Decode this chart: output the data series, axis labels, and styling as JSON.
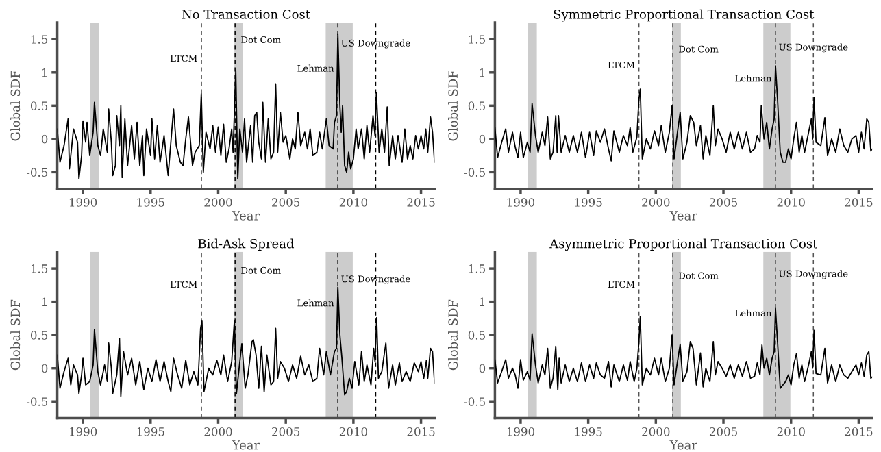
{
  "chart_data": [
    {
      "type": "line",
      "title": "No Transaction Cost",
      "xlabel": "Year",
      "ylabel": "Global SDF",
      "xlim": [
        1988.1,
        2016.0
      ],
      "ylim": [
        -0.75,
        1.75
      ],
      "xticks": [
        1990,
        1995,
        2000,
        2005,
        2010,
        2015
      ],
      "yticks": [
        -0.5,
        0,
        0.5,
        1,
        1.5
      ],
      "grid": false,
      "legend": false,
      "x": [
        1988.1,
        1988.3,
        1988.6,
        1988.9,
        1989.0,
        1989.3,
        1989.6,
        1989.7,
        1989.9,
        1990.0,
        1990.2,
        1990.3,
        1990.5,
        1990.75,
        1990.85,
        1991.1,
        1991.3,
        1991.5,
        1991.8,
        1991.9,
        1992.1,
        1992.2,
        1992.4,
        1992.5,
        1992.7,
        1992.8,
        1992.9,
        1993.1,
        1993.3,
        1993.6,
        1993.8,
        1994.0,
        1994.2,
        1994.4,
        1994.5,
        1994.7,
        1995.0,
        1995.1,
        1995.3,
        1995.5,
        1995.7,
        1996.0,
        1996.3,
        1996.5,
        1996.7,
        1996.9,
        1997.2,
        1997.4,
        1997.6,
        1997.8,
        1998.1,
        1998.3,
        1998.6,
        1998.75,
        1998.9,
        1999.1,
        1999.4,
        1999.6,
        1999.8,
        2000.0,
        2000.2,
        2000.4,
        2000.6,
        2000.8,
        2001.0,
        2001.1,
        2001.3,
        2001.45,
        2001.6,
        2001.8,
        2001.95,
        2002.1,
        2002.4,
        2002.55,
        2002.7,
        2002.85,
        2003.0,
        2003.2,
        2003.3,
        2003.5,
        2003.7,
        2003.9,
        2004.1,
        2004.25,
        2004.4,
        2004.6,
        2004.8,
        2005.0,
        2005.3,
        2005.5,
        2005.7,
        2005.9,
        2006.1,
        2006.4,
        2006.6,
        2006.8,
        2007.0,
        2007.3,
        2007.5,
        2007.7,
        2008.0,
        2008.2,
        2008.5,
        2008.6,
        2008.75,
        2008.85,
        2009.0,
        2009.1,
        2009.2,
        2009.35,
        2009.5,
        2009.65,
        2009.8,
        2010.0,
        2010.2,
        2010.35,
        2010.6,
        2010.8,
        2011.0,
        2011.2,
        2011.45,
        2011.6,
        2011.7,
        2011.9,
        2012.1,
        2012.3,
        2012.5,
        2012.65,
        2012.9,
        2013.1,
        2013.3,
        2013.6,
        2013.8,
        2014.0,
        2014.2,
        2014.4,
        2014.6,
        2014.8,
        2015.0,
        2015.2,
        2015.35,
        2015.5,
        2015.7,
        2015.85,
        2016.0
      ],
      "series": [
        {
          "color": "#000000",
          "values": [
            0.15,
            -0.35,
            -0.1,
            0.3,
            -0.45,
            0.15,
            -0.05,
            -0.6,
            -0.25,
            0.27,
            -0.05,
            0.25,
            -0.25,
            0.1,
            0.55,
            -0.1,
            -0.25,
            0.15,
            -0.2,
            0.45,
            -0.05,
            -0.55,
            -0.4,
            0.35,
            -0.1,
            0.5,
            -0.58,
            0.3,
            -0.4,
            0.2,
            -0.3,
            0.25,
            -0.4,
            0.05,
            -0.55,
            0.15,
            -0.25,
            0.3,
            -0.3,
            0.2,
            -0.35,
            0.05,
            -0.55,
            -0.05,
            0.45,
            -0.1,
            -0.35,
            -0.4,
            0.0,
            0.33,
            -0.4,
            -0.2,
            -0.1,
            0.68,
            -0.5,
            0.1,
            -0.15,
            0.2,
            -0.2,
            0.18,
            -0.25,
            0.22,
            -0.35,
            -0.15,
            0.15,
            -0.2,
            1.03,
            -0.6,
            0.15,
            -0.2,
            0.3,
            -0.35,
            0.2,
            -0.35,
            0.35,
            0.4,
            -0.05,
            -0.3,
            0.55,
            -0.35,
            0.3,
            -0.3,
            -0.2,
            0.83,
            -0.2,
            0.4,
            -0.05,
            0.05,
            -0.3,
            0.0,
            -0.15,
            0.4,
            -0.1,
            0.1,
            -0.15,
            0.15,
            -0.25,
            -0.2,
            0.1,
            -0.15,
            0.3,
            -0.1,
            -0.15,
            0.25,
            0.35,
            1.58,
            0.5,
            0.1,
            0.5,
            -0.4,
            -0.5,
            -0.2,
            -0.45,
            -0.3,
            0.15,
            -0.15,
            0.15,
            -0.3,
            0.2,
            -0.2,
            0.35,
            0.05,
            0.7,
            -0.2,
            0.15,
            -0.2,
            0.48,
            -0.4,
            0.05,
            -0.3,
            0.05,
            -0.35,
            0.15,
            -0.3,
            -0.1,
            -0.3,
            0.05,
            -0.15,
            0.05,
            -0.15,
            0.15,
            -0.2,
            0.33,
            0.1,
            -0.35
          ]
        }
      ],
      "bands": [
        {
          "axis": "x",
          "from": 1990.55,
          "to": 1991.2,
          "color": "#cccccc"
        },
        {
          "axis": "x",
          "from": 2001.2,
          "to": 2001.85,
          "color": "#cccccc"
        },
        {
          "axis": "x",
          "from": 2007.95,
          "to": 2009.95,
          "color": "#cccccc"
        }
      ],
      "ref_lines": [
        {
          "axis": "x",
          "value": 1998.75,
          "color": "#000000",
          "line_style": "dashed"
        },
        {
          "axis": "x",
          "value": 2001.25,
          "color": "#000000",
          "line_style": "dashed"
        },
        {
          "axis": "x",
          "value": 2008.85,
          "color": "#000000",
          "line_style": "dashed"
        },
        {
          "axis": "x",
          "value": 2011.65,
          "color": "#000000",
          "line_style": "dashed"
        }
      ],
      "annotations": [
        {
          "text": "LTCM",
          "x": 1998.75,
          "y": 1.2
        },
        {
          "text": "Dot Com",
          "x": 2001.25,
          "y": 1.48
        },
        {
          "text": "Lehman",
          "x": 2008.85,
          "y": 1.05
        },
        {
          "text": "US Downgrade",
          "x": 2011.65,
          "y": 1.43
        }
      ]
    },
    {
      "type": "line",
      "title": "Symmetric Proportional Transaction Cost",
      "xlabel": "Year",
      "ylabel": "Global SDF",
      "xlim": [
        1988.1,
        2016.0
      ],
      "ylim": [
        -0.75,
        1.75
      ],
      "xticks": [
        1990,
        1995,
        2000,
        2005,
        2010,
        2015
      ],
      "yticks": [
        -0.5,
        0,
        0.5,
        1,
        1.5
      ],
      "grid": false,
      "legend": false,
      "x": [
        1988.1,
        1988.3,
        1988.6,
        1988.9,
        1989.1,
        1989.4,
        1989.6,
        1989.8,
        1990.0,
        1990.2,
        1990.5,
        1990.7,
        1990.85,
        1991.1,
        1991.3,
        1991.6,
        1991.8,
        1992.0,
        1992.2,
        1992.4,
        1992.6,
        1992.7,
        1992.8,
        1993.0,
        1993.3,
        1993.6,
        1993.9,
        1994.2,
        1994.5,
        1994.8,
        1995.1,
        1995.4,
        1995.6,
        1995.9,
        1996.2,
        1996.5,
        1996.7,
        1996.9,
        1997.3,
        1997.6,
        1997.9,
        1998.1,
        1998.3,
        1998.6,
        1998.75,
        1998.85,
        1999.0,
        1999.3,
        1999.6,
        1999.9,
        2000.2,
        2000.4,
        2000.7,
        2001.0,
        2001.2,
        2001.35,
        2001.6,
        2001.8,
        2002.0,
        2002.3,
        2002.55,
        2002.8,
        2003.0,
        2003.3,
        2003.5,
        2003.7,
        2004.0,
        2004.25,
        2004.4,
        2004.6,
        2004.9,
        2005.2,
        2005.5,
        2005.8,
        2006.1,
        2006.4,
        2006.7,
        2007.0,
        2007.3,
        2007.5,
        2007.7,
        2007.8,
        2008.0,
        2008.2,
        2008.4,
        2008.6,
        2008.75,
        2008.85,
        2009.0,
        2009.2,
        2009.4,
        2009.6,
        2009.8,
        2010.0,
        2010.2,
        2010.4,
        2010.6,
        2010.8,
        2011.0,
        2011.3,
        2011.5,
        2011.6,
        2011.7,
        2011.85,
        2012.2,
        2012.5,
        2012.7,
        2013.0,
        2013.3,
        2013.6,
        2013.9,
        2014.2,
        2014.5,
        2014.8,
        2015.0,
        2015.2,
        2015.4,
        2015.6,
        2015.75,
        2015.9,
        2016.0
      ],
      "series": [
        {
          "color": "#000000",
          "values": [
            0.17,
            -0.28,
            -0.05,
            0.15,
            -0.2,
            0.1,
            -0.12,
            -0.28,
            0.1,
            -0.28,
            -0.05,
            -0.2,
            0.53,
            0.05,
            -0.2,
            0.1,
            -0.1,
            0.33,
            -0.3,
            -0.2,
            0.35,
            -0.2,
            0.35,
            -0.2,
            0.05,
            -0.2,
            0.05,
            -0.2,
            0.1,
            -0.28,
            0.1,
            -0.25,
            0.12,
            -0.05,
            0.15,
            -0.15,
            -0.33,
            0.12,
            -0.2,
            0.05,
            -0.1,
            0.17,
            -0.2,
            0.03,
            0.6,
            0.75,
            -0.3,
            0.0,
            -0.15,
            0.12,
            -0.1,
            0.2,
            -0.2,
            0.1,
            0.5,
            -0.3,
            0.1,
            0.4,
            -0.3,
            -0.05,
            0.35,
            0.25,
            -0.1,
            0.2,
            -0.3,
            0.05,
            -0.25,
            0.5,
            -0.1,
            0.15,
            0.0,
            -0.2,
            0.1,
            -0.15,
            0.1,
            -0.15,
            0.1,
            -0.2,
            -0.15,
            0.05,
            -0.05,
            0.5,
            0.0,
            0.25,
            -0.15,
            0.15,
            0.3,
            1.1,
            0.6,
            -0.2,
            -0.35,
            -0.35,
            -0.15,
            -0.3,
            0.0,
            0.25,
            -0.2,
            0.05,
            -0.2,
            0.1,
            0.3,
            0.0,
            0.62,
            -0.05,
            -0.1,
            0.32,
            -0.25,
            0.0,
            -0.2,
            0.15,
            -0.1,
            -0.2,
            0.0,
            0.05,
            -0.2,
            0.1,
            -0.15,
            0.3,
            0.25,
            -0.18,
            -0.15
          ]
        }
      ],
      "bands": [
        {
          "axis": "x",
          "from": 1990.55,
          "to": 1991.2,
          "color": "#cccccc"
        },
        {
          "axis": "x",
          "from": 2001.2,
          "to": 2001.85,
          "color": "#cccccc"
        },
        {
          "axis": "x",
          "from": 2007.95,
          "to": 2009.95,
          "color": "#cccccc"
        }
      ],
      "ref_lines": [
        {
          "axis": "x",
          "value": 1998.75,
          "color": "#555555",
          "line_style": "dashed"
        },
        {
          "axis": "x",
          "value": 2001.25,
          "color": "#555555",
          "line_style": "dashed"
        },
        {
          "axis": "x",
          "value": 2008.85,
          "color": "#555555",
          "line_style": "dashed"
        },
        {
          "axis": "x",
          "value": 2011.65,
          "color": "#555555",
          "line_style": "dashed"
        }
      ],
      "annotations": [
        {
          "text": "LTCM",
          "x": 1998.75,
          "y": 1.1
        },
        {
          "text": "Dot Com",
          "x": 2001.25,
          "y": 1.34
        },
        {
          "text": "Lehman",
          "x": 2008.85,
          "y": 0.9
        },
        {
          "text": "US Downgrade",
          "x": 2011.65,
          "y": 1.37
        }
      ]
    },
    {
      "type": "line",
      "title": "Bid-Ask Spread",
      "xlabel": "Year",
      "ylabel": "Global SDF",
      "xlim": [
        1988.1,
        2016.0
      ],
      "ylim": [
        -0.75,
        1.75
      ],
      "xticks": [
        1990,
        1995,
        2000,
        2005,
        2010,
        2015
      ],
      "yticks": [
        -0.5,
        0,
        0.5,
        1,
        1.5
      ],
      "grid": false,
      "legend": false,
      "x": [
        1988.1,
        1988.3,
        1988.6,
        1988.9,
        1989.1,
        1989.3,
        1989.6,
        1989.7,
        1989.9,
        1990.0,
        1990.2,
        1990.5,
        1990.75,
        1990.85,
        1991.1,
        1991.3,
        1991.6,
        1991.8,
        1991.9,
        1992.1,
        1992.2,
        1992.5,
        1992.7,
        1992.8,
        1993.0,
        1993.3,
        1993.6,
        1993.9,
        1994.2,
        1994.5,
        1994.8,
        1995.1,
        1995.4,
        1995.7,
        1996.0,
        1996.3,
        1996.5,
        1996.7,
        1997.0,
        1997.3,
        1997.6,
        1997.9,
        1998.2,
        1998.5,
        1998.7,
        1998.8,
        1998.95,
        1999.3,
        1999.6,
        1999.9,
        2000.2,
        2000.4,
        2000.7,
        2001.0,
        2001.2,
        2001.35,
        2001.6,
        2001.75,
        2002.0,
        2002.2,
        2002.5,
        2002.6,
        2002.8,
        2003.0,
        2003.2,
        2003.4,
        2003.6,
        2003.9,
        2004.1,
        2004.25,
        2004.4,
        2004.6,
        2004.9,
        2005.2,
        2005.5,
        2005.8,
        2006.1,
        2006.4,
        2006.7,
        2007.0,
        2007.3,
        2007.5,
        2007.8,
        2008.0,
        2008.3,
        2008.6,
        2008.75,
        2008.85,
        2009.0,
        2009.15,
        2009.35,
        2009.5,
        2009.7,
        2009.9,
        2010.1,
        2010.4,
        2010.6,
        2010.8,
        2011.0,
        2011.3,
        2011.5,
        2011.6,
        2011.72,
        2011.85,
        2012.1,
        2012.4,
        2012.6,
        2012.9,
        2013.1,
        2013.4,
        2013.6,
        2013.9,
        2014.2,
        2014.5,
        2014.8,
        2015.0,
        2015.2,
        2015.4,
        2015.5,
        2015.7,
        2015.85,
        2016.0
      ],
      "series": [
        {
          "color": "#000000",
          "values": [
            0.2,
            -0.3,
            -0.05,
            0.15,
            -0.25,
            0.05,
            -0.1,
            -0.38,
            -0.1,
            0.15,
            -0.25,
            -0.2,
            0.05,
            0.58,
            -0.05,
            -0.25,
            0.05,
            -0.2,
            0.38,
            0.0,
            -0.38,
            -0.1,
            0.45,
            -0.42,
            0.25,
            -0.1,
            0.15,
            -0.25,
            0.1,
            -0.32,
            0.0,
            -0.2,
            0.13,
            -0.2,
            0.1,
            -0.2,
            -0.35,
            0.15,
            -0.1,
            -0.3,
            0.12,
            -0.25,
            -0.05,
            -0.25,
            0.6,
            0.72,
            -0.35,
            0.0,
            -0.1,
            0.12,
            -0.1,
            0.2,
            -0.2,
            0.1,
            0.72,
            -0.38,
            0.1,
            0.37,
            -0.3,
            -0.1,
            0.4,
            0.43,
            0.2,
            -0.3,
            0.33,
            -0.35,
            0.2,
            -0.25,
            -0.2,
            0.6,
            -0.15,
            0.1,
            0.0,
            -0.2,
            0.05,
            -0.15,
            0.18,
            -0.1,
            0.05,
            -0.2,
            -0.15,
            0.3,
            -0.1,
            0.25,
            -0.1,
            0.25,
            0.3,
            1.22,
            0.5,
            0.15,
            -0.4,
            -0.35,
            -0.15,
            -0.3,
            0.1,
            -0.25,
            0.25,
            -0.2,
            0.05,
            -0.25,
            0.3,
            0.1,
            0.76,
            -0.15,
            -0.05,
            0.38,
            -0.3,
            0.05,
            -0.25,
            0.08,
            -0.2,
            -0.05,
            -0.2,
            0.08,
            -0.05,
            0.1,
            -0.15,
            0.12,
            -0.15,
            0.3,
            0.25,
            -0.22
          ]
        }
      ],
      "bands": [
        {
          "axis": "x",
          "from": 1990.55,
          "to": 1991.2,
          "color": "#cccccc"
        },
        {
          "axis": "x",
          "from": 2001.2,
          "to": 2001.85,
          "color": "#cccccc"
        },
        {
          "axis": "x",
          "from": 2007.95,
          "to": 2009.95,
          "color": "#cccccc"
        }
      ],
      "ref_lines": [
        {
          "axis": "x",
          "value": 1998.75,
          "color": "#000000",
          "line_style": "dashed"
        },
        {
          "axis": "x",
          "value": 2001.25,
          "color": "#000000",
          "line_style": "dashed"
        },
        {
          "axis": "x",
          "value": 2008.85,
          "color": "#000000",
          "line_style": "dashed"
        },
        {
          "axis": "x",
          "value": 2011.65,
          "color": "#000000",
          "line_style": "dashed"
        }
      ],
      "annotations": [
        {
          "text": "LTCM",
          "x": 1998.75,
          "y": 1.25
        },
        {
          "text": "Dot Com",
          "x": 2001.25,
          "y": 1.46
        },
        {
          "text": "Lehman",
          "x": 2008.85,
          "y": 0.97
        },
        {
          "text": "US Downgrade",
          "x": 2011.65,
          "y": 1.33
        }
      ]
    },
    {
      "type": "line",
      "title": "Asymmetric Proportional Transaction Cost",
      "xlabel": "Year",
      "ylabel": "Global SDF",
      "xlim": [
        1988.1,
        2016.0
      ],
      "ylim": [
        -0.75,
        1.75
      ],
      "xticks": [
        1990,
        1995,
        2000,
        2005,
        2010,
        2015
      ],
      "yticks": [
        -0.5,
        0,
        0.5,
        1,
        1.5
      ],
      "grid": false,
      "legend": false,
      "x": [
        1988.1,
        1988.3,
        1988.6,
        1988.9,
        1989.1,
        1989.4,
        1989.6,
        1989.8,
        1990.0,
        1990.2,
        1990.5,
        1990.7,
        1990.85,
        1991.1,
        1991.3,
        1991.6,
        1991.8,
        1992.0,
        1992.2,
        1992.4,
        1992.6,
        1992.75,
        1992.85,
        1993.0,
        1993.3,
        1993.6,
        1993.9,
        1994.2,
        1994.5,
        1994.8,
        1995.1,
        1995.4,
        1995.6,
        1995.9,
        1996.2,
        1996.5,
        1996.7,
        1996.9,
        1997.3,
        1997.6,
        1997.9,
        1998.1,
        1998.4,
        1998.6,
        1998.75,
        1998.85,
        1999.0,
        1999.3,
        1999.6,
        1999.9,
        2000.2,
        2000.4,
        2000.7,
        2001.0,
        2001.2,
        2001.35,
        2001.6,
        2001.8,
        2002.0,
        2002.3,
        2002.55,
        2002.75,
        2003.0,
        2003.3,
        2003.5,
        2003.7,
        2004.0,
        2004.25,
        2004.4,
        2004.6,
        2004.9,
        2005.2,
        2005.5,
        2005.8,
        2006.1,
        2006.4,
        2006.7,
        2007.0,
        2007.3,
        2007.5,
        2007.7,
        2007.85,
        2008.0,
        2008.2,
        2008.4,
        2008.6,
        2008.75,
        2008.85,
        2009.0,
        2009.2,
        2009.4,
        2009.6,
        2009.8,
        2010.0,
        2010.2,
        2010.4,
        2010.6,
        2010.8,
        2011.0,
        2011.3,
        2011.5,
        2011.6,
        2011.7,
        2011.85,
        2012.2,
        2012.5,
        2012.7,
        2013.0,
        2013.3,
        2013.6,
        2013.9,
        2014.2,
        2014.5,
        2014.8,
        2015.0,
        2015.2,
        2015.4,
        2015.6,
        2015.75,
        2015.9,
        2016.0
      ],
      "series": [
        {
          "color": "#000000",
          "values": [
            0.13,
            -0.22,
            -0.05,
            0.13,
            -0.15,
            0.0,
            -0.1,
            -0.3,
            0.13,
            -0.18,
            -0.05,
            -0.18,
            0.52,
            0.05,
            -0.22,
            0.05,
            -0.1,
            0.3,
            -0.3,
            -0.15,
            0.33,
            -0.32,
            0.15,
            -0.22,
            0.05,
            -0.2,
            0.0,
            -0.2,
            0.08,
            -0.2,
            0.05,
            -0.15,
            0.08,
            -0.1,
            -0.15,
            0.1,
            -0.28,
            0.05,
            -0.2,
            0.05,
            -0.18,
            0.1,
            -0.2,
            0.0,
            0.4,
            0.78,
            -0.25,
            0.0,
            -0.1,
            0.15,
            -0.1,
            0.15,
            -0.2,
            0.0,
            0.5,
            -0.25,
            0.1,
            0.36,
            -0.2,
            -0.05,
            0.4,
            0.3,
            -0.25,
            0.23,
            -0.28,
            0.0,
            -0.2,
            0.4,
            -0.1,
            0.1,
            0.0,
            -0.12,
            0.05,
            -0.15,
            0.05,
            -0.12,
            0.1,
            -0.15,
            -0.12,
            0.08,
            -0.1,
            0.35,
            0.0,
            0.15,
            -0.1,
            0.15,
            0.25,
            0.9,
            0.4,
            -0.3,
            -0.25,
            -0.2,
            -0.1,
            -0.25,
            0.05,
            0.22,
            -0.15,
            0.05,
            -0.2,
            0.05,
            0.25,
            0.0,
            0.57,
            -0.08,
            -0.1,
            0.3,
            -0.22,
            0.05,
            -0.2,
            0.05,
            -0.1,
            -0.15,
            -0.05,
            0.05,
            -0.1,
            0.08,
            -0.12,
            0.2,
            0.25,
            -0.15,
            -0.13
          ]
        }
      ],
      "bands": [
        {
          "axis": "x",
          "from": 1990.55,
          "to": 1991.2,
          "color": "#cccccc"
        },
        {
          "axis": "x",
          "from": 2001.2,
          "to": 2001.85,
          "color": "#cccccc"
        },
        {
          "axis": "x",
          "from": 2007.95,
          "to": 2009.95,
          "color": "#cccccc"
        }
      ],
      "ref_lines": [
        {
          "axis": "x",
          "value": 1998.75,
          "color": "#555555",
          "line_style": "dashed"
        },
        {
          "axis": "x",
          "value": 2001.25,
          "color": "#555555",
          "line_style": "dashed"
        },
        {
          "axis": "x",
          "value": 2008.85,
          "color": "#555555",
          "line_style": "dashed"
        },
        {
          "axis": "x",
          "value": 2011.65,
          "color": "#555555",
          "line_style": "dashed"
        }
      ],
      "annotations": [
        {
          "text": "LTCM",
          "x": 1998.75,
          "y": 1.25
        },
        {
          "text": "Dot Com",
          "x": 2001.25,
          "y": 1.38
        },
        {
          "text": "Lehman",
          "x": 2008.85,
          "y": 0.82
        },
        {
          "text": "US Downgrade",
          "x": 2011.65,
          "y": 1.41
        }
      ]
    }
  ]
}
